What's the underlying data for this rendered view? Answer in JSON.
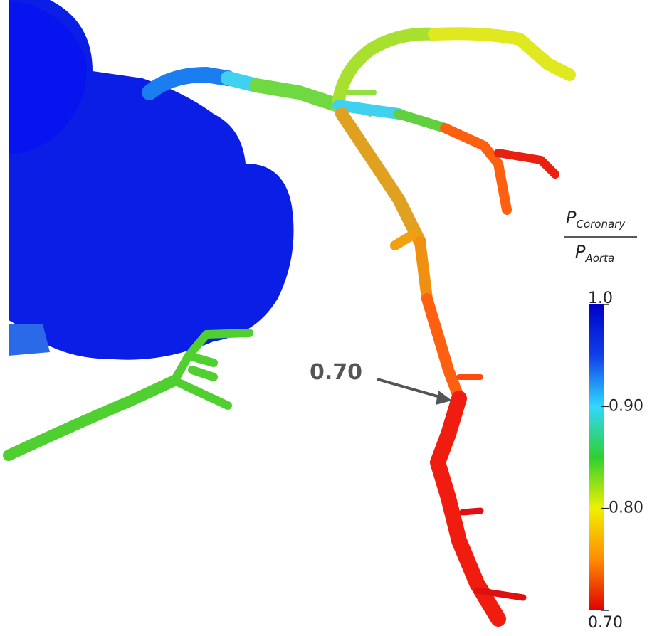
{
  "annotation": {
    "label": "0.70"
  },
  "colorbar": {
    "title": {
      "numerator": {
        "symbol": "P",
        "subscript": "Coronary"
      },
      "denominator": {
        "symbol": "P",
        "subscript": "Aorta"
      }
    },
    "range": [
      0.7,
      1.0
    ],
    "colors": [
      "#e00000",
      "#ff8c00",
      "#f0f000",
      "#30d030",
      "#30d8ff",
      "#1040e8",
      "#0000c8"
    ],
    "ticks": [
      {
        "value": 1.0,
        "label": "1.0"
      },
      {
        "value": 0.9,
        "label": "0.90"
      },
      {
        "value": 0.8,
        "label": "0.80"
      },
      {
        "value": 0.7,
        "label": "0.70"
      }
    ]
  }
}
